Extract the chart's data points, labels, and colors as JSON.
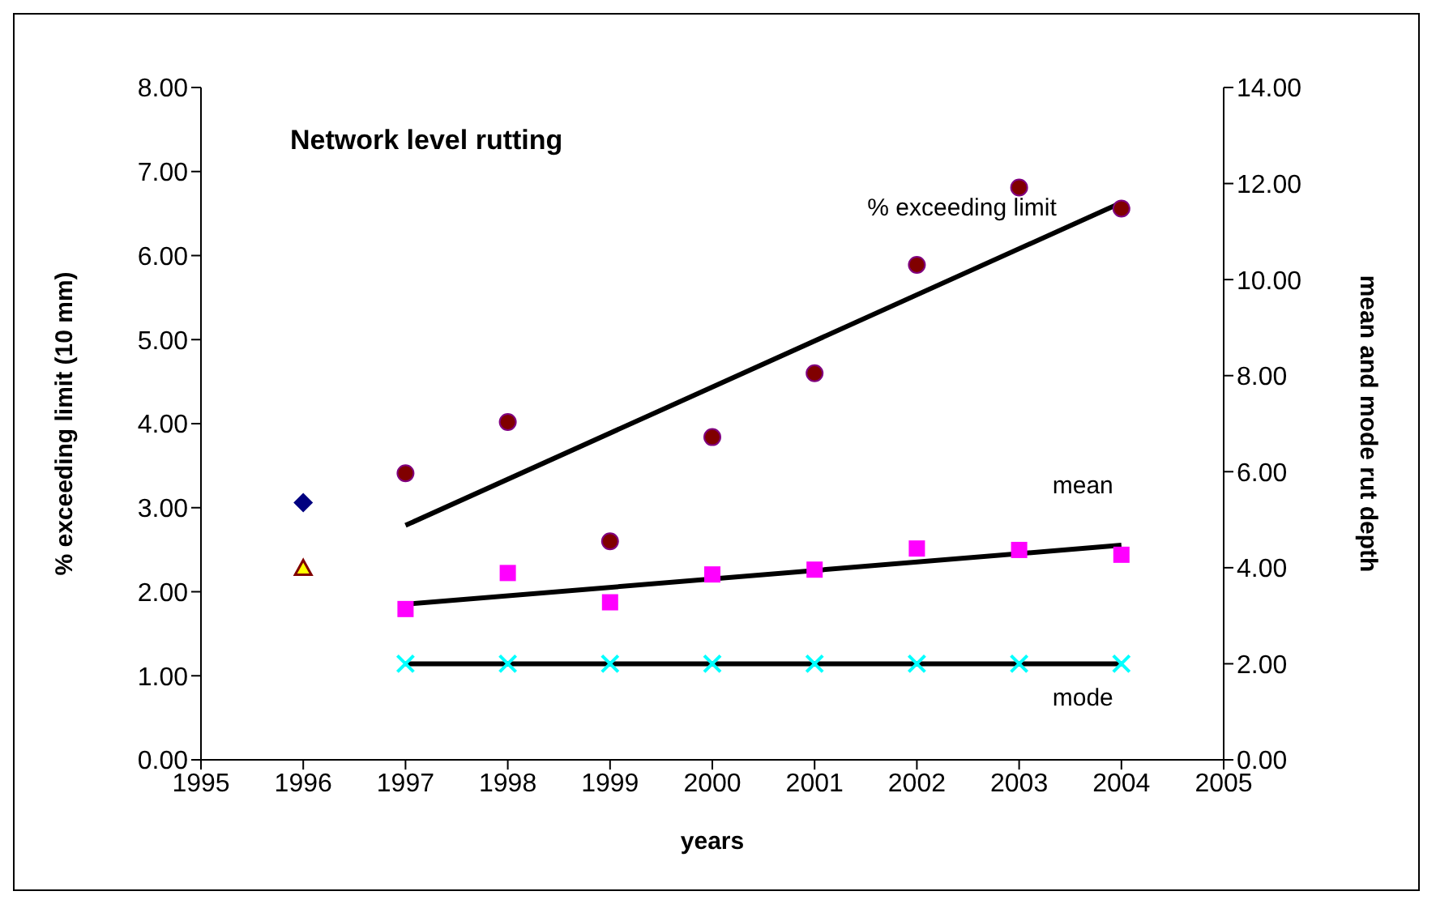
{
  "chart_data": {
    "type": "scatter",
    "title": "Network level rutting",
    "xlabel": "years",
    "ylabel": "% exceeding limit (10 mm)",
    "y2label": "mean and mode rut depth",
    "xlim": [
      1995,
      2005
    ],
    "xticks": [
      1995,
      1996,
      1997,
      1998,
      1999,
      2000,
      2001,
      2002,
      2003,
      2004,
      2005
    ],
    "ylim": [
      0,
      8
    ],
    "yticks": [
      {
        "value": 0,
        "label": "0.00"
      },
      {
        "value": 1,
        "label": "1.00"
      },
      {
        "value": 2,
        "label": "2.00"
      },
      {
        "value": 3,
        "label": "3.00"
      },
      {
        "value": 4,
        "label": "4.00"
      },
      {
        "value": 5,
        "label": "5.00"
      },
      {
        "value": 6,
        "label": "6.00"
      },
      {
        "value": 7,
        "label": "7.00"
      },
      {
        "value": 8,
        "label": "8.00"
      }
    ],
    "y2lim": [
      0,
      14
    ],
    "y2ticks": [
      {
        "value": 0,
        "label": "0.00"
      },
      {
        "value": 2,
        "label": "2.00"
      },
      {
        "value": 4,
        "label": "4.00"
      },
      {
        "value": 6,
        "label": "6.00"
      },
      {
        "value": 8,
        "label": "8.00"
      },
      {
        "value": 10,
        "label": "10.00"
      },
      {
        "value": 12,
        "label": "12.00"
      },
      {
        "value": 14,
        "label": "14.00"
      }
    ],
    "grid": false,
    "legend": false,
    "series": [
      {
        "color": "#800000",
        "marker": "circle",
        "x": [
          1997,
          1998,
          1999,
          2000,
          2001,
          2002,
          2003,
          2004
        ],
        "values": [
          3.41,
          4.02,
          2.6,
          3.84,
          4.6,
          5.89,
          6.81,
          6.56
        ]
      },
      {
        "color": "#ff00ff",
        "marker": "square",
        "axis": "y2",
        "x": [
          1997,
          1998,
          1999,
          2000,
          2001,
          2002,
          2003,
          2004
        ],
        "values": [
          3.14,
          3.89,
          3.28,
          3.86,
          3.96,
          4.4,
          4.37,
          4.27
        ]
      },
      {
        "color": "#00ffff",
        "marker": "cross",
        "axis": "y2",
        "x": [
          1997,
          1998,
          1999,
          2000,
          2001,
          2002,
          2003,
          2004
        ],
        "values": [
          2,
          2,
          2,
          2,
          2,
          2,
          2,
          2
        ]
      },
      {
        "color": "#000080",
        "marker": "diamond",
        "x": [
          1996
        ],
        "values": [
          3.06
        ]
      },
      {
        "color": "#ffff00",
        "marker": "triangle",
        "x": [
          1996
        ],
        "values": [
          2.28
        ]
      },
      {
        "type": "line",
        "name": "% exceeding limit",
        "color": "#000000",
        "marker": "none",
        "x": [
          1997,
          2004
        ],
        "values": [
          2.79,
          6.63
        ]
      },
      {
        "type": "line",
        "name": "mean",
        "color": "#000000",
        "marker": "none",
        "axis": "y2",
        "x": [
          1997,
          2004
        ],
        "values": [
          3.24,
          4.47
        ]
      },
      {
        "type": "line",
        "name": "mode",
        "color": "#000000",
        "marker": "none",
        "axis": "y2",
        "x": [
          1997,
          2004
        ],
        "values": [
          2,
          2
        ]
      }
    ]
  }
}
